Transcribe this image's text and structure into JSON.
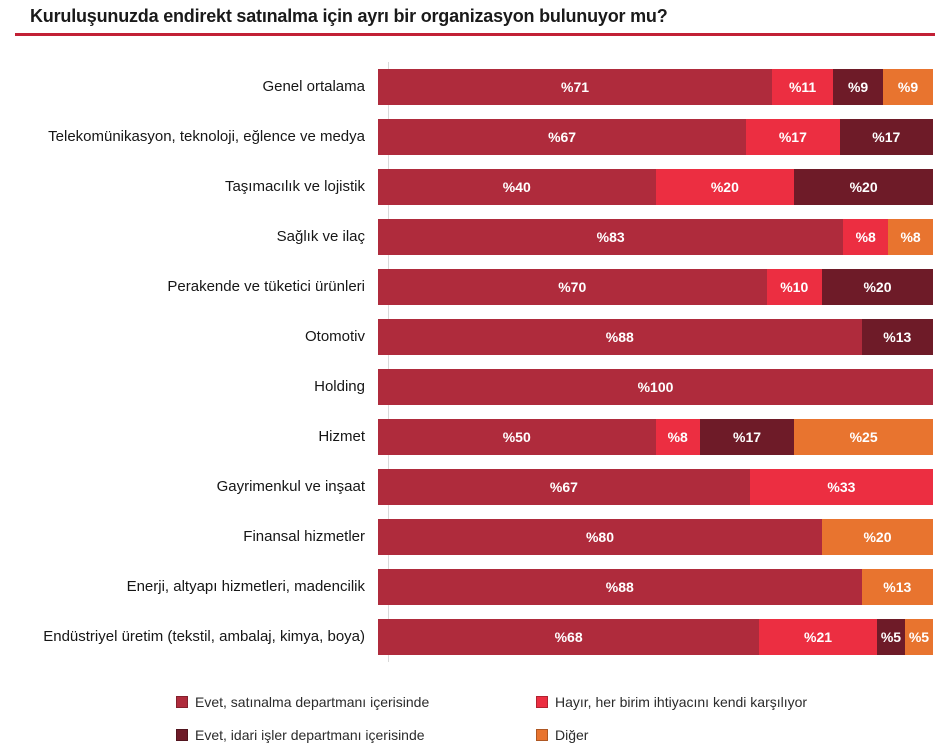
{
  "title": "Kuruluşunuzda endirekt satınalma için ayrı bir organizasyon bulunuyor mu?",
  "colors": {
    "title_underline": "#c22035",
    "axis_line": "#d9d9d9",
    "series_evet_satinalma": "#af2b3c",
    "series_hayir": "#ec2e41",
    "series_evet_idari": "#6e1b28",
    "series_diger": "#e8742f"
  },
  "chart_data": {
    "type": "bar",
    "orientation": "horizontal",
    "stacked": true,
    "title": "Kuruluşunuzda endirekt satınalma için ayrı bir organizasyon bulunuyor mu?",
    "value_prefix": "%",
    "xlim": [
      0,
      100
    ],
    "grid": false,
    "legend_position": "bottom",
    "categories": [
      "Genel ortalama",
      "Telekomünikasyon, teknoloji, eğlence ve medya",
      "Taşımacılık ve lojistik",
      "Sağlık ve ilaç",
      "Perakende ve tüketici ürünleri",
      "Otomotiv",
      "Holding",
      "Hizmet",
      "Gayrimenkul ve inşaat",
      "Finansal hizmetler",
      "Enerji, altyapı hizmetleri, madencilik",
      "Endüstriyel üretim (tekstil, ambalaj, kimya, boya)"
    ],
    "series": [
      {
        "name": "Evet, satınalma departmanı içerisinde",
        "color": "#af2b3c",
        "values": [
          71,
          67,
          40,
          83,
          70,
          88,
          100,
          50,
          67,
          80,
          88,
          68
        ]
      },
      {
        "name": "Hayır, her birim ihtiyacını kendi karşılıyor",
        "color": "#ec2e41",
        "values": [
          11,
          17,
          20,
          8,
          10,
          0,
          0,
          8,
          33,
          0,
          0,
          21
        ]
      },
      {
        "name": "Evet, idari işler departmanı içerisinde",
        "color": "#6e1b28",
        "values": [
          9,
          17,
          20,
          0,
          20,
          13,
          0,
          17,
          0,
          0,
          0,
          5
        ]
      },
      {
        "name": "Diğer",
        "color": "#e8742f",
        "values": [
          9,
          0,
          0,
          8,
          0,
          0,
          0,
          25,
          0,
          20,
          13,
          5
        ]
      }
    ]
  },
  "legend": {
    "items": [
      {
        "label": "Evet, satınalma departmanı içerisinde",
        "color": "#af2b3c"
      },
      {
        "label": "Hayır, her birim ihtiyacını kendi karşılıyor",
        "color": "#ec2e41"
      },
      {
        "label": "Evet, idari işler departmanı içerisinde",
        "color": "#6e1b28"
      },
      {
        "label": "Diğer",
        "color": "#e8742f"
      }
    ]
  }
}
